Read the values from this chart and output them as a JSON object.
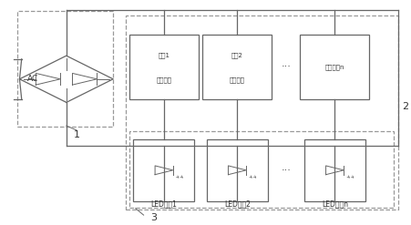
{
  "bg_color": "#ffffff",
  "line_color": "#666666",
  "dash_color": "#999999",
  "text_color": "#333333",
  "fig_bg": "#ffffff",
  "labels": {
    "ac": "AC",
    "num1": "1",
    "num2": "2",
    "num3": "3",
    "led1": "LED灯串1",
    "led2": "LED灯串2",
    "ledn": "LED灯串n",
    "ctrl1_l1": "自控恒流",
    "ctrl1_l2": "电路1",
    "ctrl2_l1": "自控恒流",
    "ctrl2_l2": "电路2",
    "ctrln_l1": "恒流电路n",
    "dots_h": "···",
    "dots_h2": "···"
  },
  "layout": {
    "fig_w": 4.51,
    "fig_h": 2.47,
    "dpi": 100
  }
}
